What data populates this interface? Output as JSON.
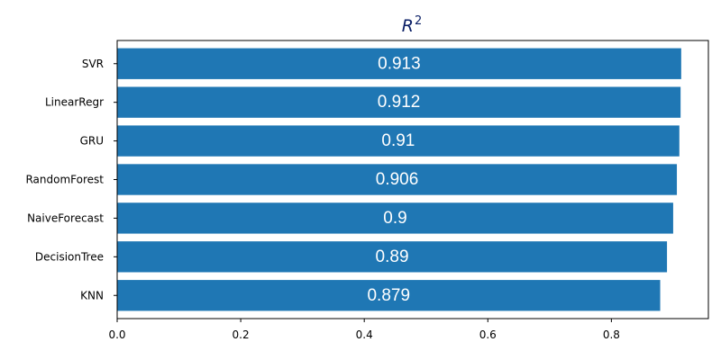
{
  "chart_data": {
    "type": "bar",
    "orientation": "horizontal",
    "title": "R",
    "title_superscript": "2",
    "categories": [
      "SVR",
      "LinearRegr",
      "GRU",
      "RandomForest",
      "NaiveForecast",
      "DecisionTree",
      "KNN"
    ],
    "values": [
      0.913,
      0.912,
      0.91,
      0.906,
      0.9,
      0.89,
      0.879
    ],
    "data_labels": [
      "0.913",
      "0.912",
      "0.91",
      "0.906",
      "0.9",
      "0.89",
      "0.879"
    ],
    "xlim": [
      0,
      0.957
    ],
    "xticks": [
      "0.0",
      "0.2",
      "0.4",
      "0.6",
      "0.8"
    ],
    "xlabel": "",
    "ylabel": "",
    "grid": false,
    "bar_color": "#1f77b4",
    "title_color": "#0b1f66"
  }
}
